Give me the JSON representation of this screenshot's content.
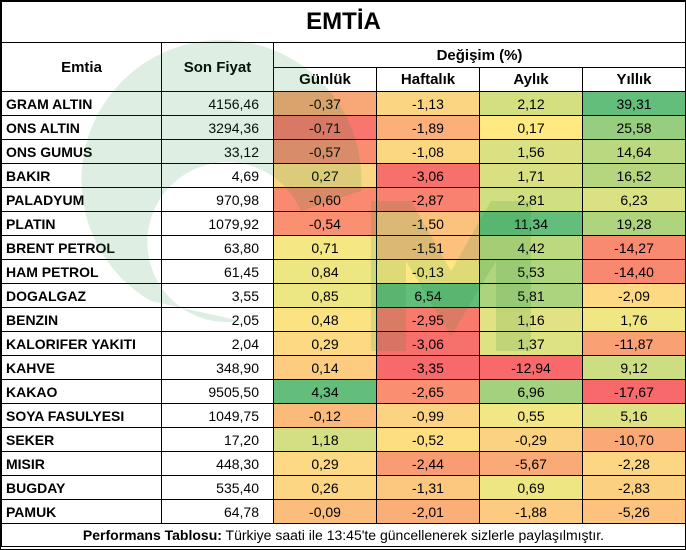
{
  "title": "EMTİA",
  "headers": {
    "commodity": "Emtia",
    "last_price": "Son Fiyat",
    "change": "Değişim (%)",
    "daily": "Günlük",
    "weekly": "Haftalık",
    "monthly": "Aylık",
    "yearly": "Yıllık"
  },
  "rows": [
    {
      "name": "GRAM ALTIN",
      "price": "4156,46",
      "daily": "-0,37",
      "weekly": "-1,13",
      "monthly": "2,12",
      "yearly": "39,31",
      "colors": [
        "#f8a877",
        "#fcd582",
        "#d4e080",
        "#63be7b"
      ]
    },
    {
      "name": "ONS ALTIN",
      "price": "3294,36",
      "daily": "-0,71",
      "weekly": "-1,89",
      "monthly": "0,17",
      "yearly": "25,58",
      "colors": [
        "#f8766d",
        "#fbb07a",
        "#fee983",
        "#97cd7e"
      ]
    },
    {
      "name": "ONS GUMUS",
      "price": "33,12",
      "daily": "-0,57",
      "weekly": "-1,08",
      "monthly": "1,56",
      "yearly": "14,64",
      "colors": [
        "#f98d71",
        "#fcd782",
        "#dae182",
        "#bad87f"
      ]
    },
    {
      "name": "BAKIR",
      "price": "4,69",
      "daily": "0,27",
      "weekly": "-3,06",
      "monthly": "1,71",
      "yearly": "16,52",
      "colors": [
        "#fcd783",
        "#f8706b",
        "#d8e082",
        "#b5d67f"
      ]
    },
    {
      "name": "PALADYUM",
      "price": "970,98",
      "daily": "-0,60",
      "weekly": "-2,87",
      "monthly": "2,81",
      "yearly": "6,23",
      "colors": [
        "#f98970",
        "#f8816f",
        "#cfdf81",
        "#d9e182"
      ]
    },
    {
      "name": "PLATIN",
      "price": "1079,92",
      "daily": "-0,54",
      "weekly": "-1,50",
      "monthly": "11,34",
      "yearly": "19,28",
      "colors": [
        "#f99072",
        "#fbc27e",
        "#63be7b",
        "#aed47e"
      ]
    },
    {
      "name": "BRENT PETROL",
      "price": "63,80",
      "daily": "0,71",
      "weekly": "-1,51",
      "monthly": "4,42",
      "yearly": "-14,27",
      "colors": [
        "#f5e884",
        "#fbc17d",
        "#bcd980",
        "#f88a70"
      ]
    },
    {
      "name": "HAM PETROL",
      "price": "61,45",
      "daily": "0,84",
      "weekly": "-0,13",
      "monthly": "5,53",
      "yearly": "-14,40",
      "colors": [
        "#ede683",
        "#fee883",
        "#b0d57f",
        "#f8886f"
      ]
    },
    {
      "name": "DOGALGAZ",
      "price": "3,55",
      "daily": "0,85",
      "weekly": "6,54",
      "monthly": "5,81",
      "yearly": "-2,09",
      "colors": [
        "#ece683",
        "#63be7b",
        "#acd47f",
        "#fdd983"
      ]
    },
    {
      "name": "BENZIN",
      "price": "2,05",
      "daily": "0,48",
      "weekly": "-2,95",
      "monthly": "1,16",
      "yearly": "1,76",
      "colors": [
        "#fbe384",
        "#f87a6d",
        "#e0e283",
        "#f0e784"
      ]
    },
    {
      "name": "KALORIFER YAKITI",
      "price": "2,04",
      "daily": "0,29",
      "weekly": "-3,06",
      "monthly": "1,37",
      "yearly": "-11,87",
      "colors": [
        "#fdd983",
        "#f8706b",
        "#dde283",
        "#f9a074"
      ]
    },
    {
      "name": "KAHVE",
      "price": "348,90",
      "daily": "0,14",
      "weekly": "-3,35",
      "monthly": "-12,94",
      "yearly": "9,12",
      "colors": [
        "#fecc81",
        "#f8696b",
        "#f8696b",
        "#cddd82"
      ]
    },
    {
      "name": "KAKAO",
      "price": "9505,50",
      "daily": "4,34",
      "weekly": "-2,65",
      "monthly": "6,96",
      "yearly": "-17,67",
      "colors": [
        "#63be7b",
        "#f98e71",
        "#a3d17e",
        "#f8696b"
      ]
    },
    {
      "name": "SOYA FASULYESI",
      "price": "1049,75",
      "daily": "-0,12",
      "weekly": "-0,99",
      "monthly": "0,55",
      "yearly": "5,16",
      "colors": [
        "#fbb97a",
        "#fcd382",
        "#f1e784",
        "#dee283"
      ]
    },
    {
      "name": "SEKER",
      "price": "17,20",
      "daily": "1,18",
      "weekly": "-0,52",
      "monthly": "-0,29",
      "yearly": "-10,70",
      "colors": [
        "#d3df82",
        "#fddf82",
        "#fbd281",
        "#f9a876"
      ]
    },
    {
      "name": "MISIR",
      "price": "448,30",
      "daily": "0,29",
      "weekly": "-2,44",
      "monthly": "-5,67",
      "yearly": "-2,28",
      "colors": [
        "#fdd983",
        "#f99c73",
        "#faaa77",
        "#fdd683"
      ]
    },
    {
      "name": "BUGDAY",
      "price": "535,40",
      "daily": "0,26",
      "weekly": "-1,31",
      "monthly": "0,69",
      "yearly": "-2,83",
      "colors": [
        "#fdd683",
        "#fcc77f",
        "#eee683",
        "#fcd081"
      ]
    },
    {
      "name": "PAMUK",
      "price": "64,78",
      "daily": "-0,09",
      "weekly": "-2,01",
      "monthly": "-1,88",
      "yearly": "-5,26",
      "colors": [
        "#fbbd7b",
        "#faae78",
        "#fcca80",
        "#fcc27e"
      ]
    }
  ],
  "footer": {
    "label": "Performans Tablosu:",
    "text": " Türkiye saati ile 13:45'te güncellenerek sizlerle paylaşılmıştır."
  },
  "watermark_icon": "gcm-logo-watermark"
}
